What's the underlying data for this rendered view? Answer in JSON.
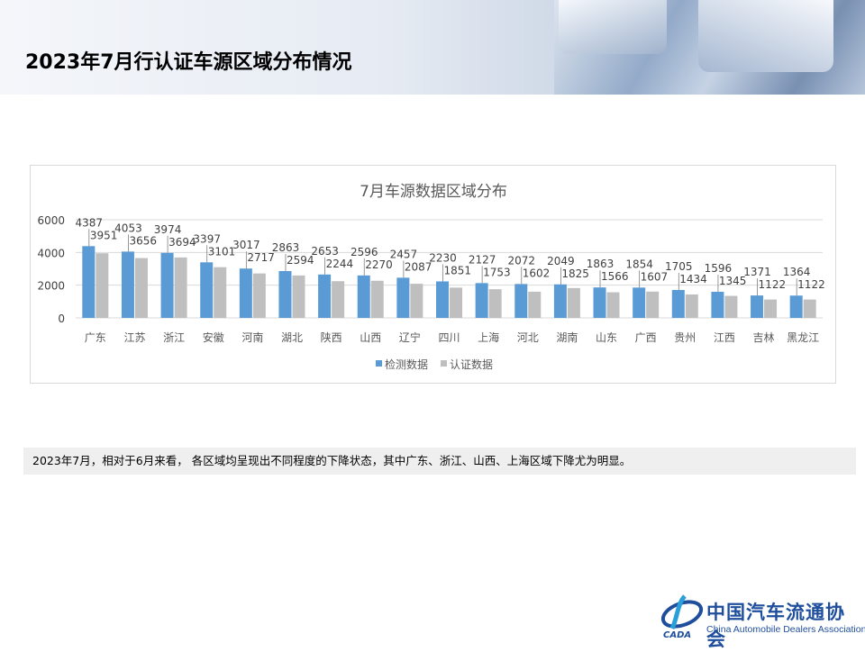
{
  "page_title": "2023年7月行认证车源区域分布情况",
  "note": "2023年7月，相对于6月来看， 各区域均呈现出不同程度的下降状态，其中广东、浙江、山西、上海区域下降尤为明显。",
  "logo": {
    "cn": "中国汽车流通协会",
    "en": "China Automobile Dealers Association",
    "mark": "CADA"
  },
  "chart_data": {
    "type": "bar",
    "title": "7月车源数据区域分布",
    "categories": [
      "广东",
      "江苏",
      "浙江",
      "安徽",
      "河南",
      "湖北",
      "陕西",
      "山西",
      "辽宁",
      "四川",
      "上海",
      "河北",
      "湖南",
      "山东",
      "广西",
      "贵州",
      "江西",
      "吉林",
      "黑龙江"
    ],
    "series": [
      {
        "name": "检测数据",
        "color": "#5b9bd5",
        "values": [
          4387,
          4053,
          3974,
          3397,
          3017,
          2863,
          2653,
          2596,
          2457,
          2230,
          2127,
          2072,
          2049,
          1863,
          1854,
          1705,
          1596,
          1371,
          1364
        ]
      },
      {
        "name": "认证数据",
        "color": "#bfbfbf",
        "values": [
          3951,
          3656,
          3694,
          3101,
          2717,
          2594,
          2244,
          2270,
          2087,
          1851,
          1753,
          1602,
          1825,
          1566,
          1607,
          1434,
          1345,
          1122,
          1122
        ]
      }
    ],
    "ylim": [
      0,
      6000
    ],
    "yticks": [
      0,
      2000,
      4000,
      6000
    ],
    "grid": true,
    "legend": "bottom"
  }
}
